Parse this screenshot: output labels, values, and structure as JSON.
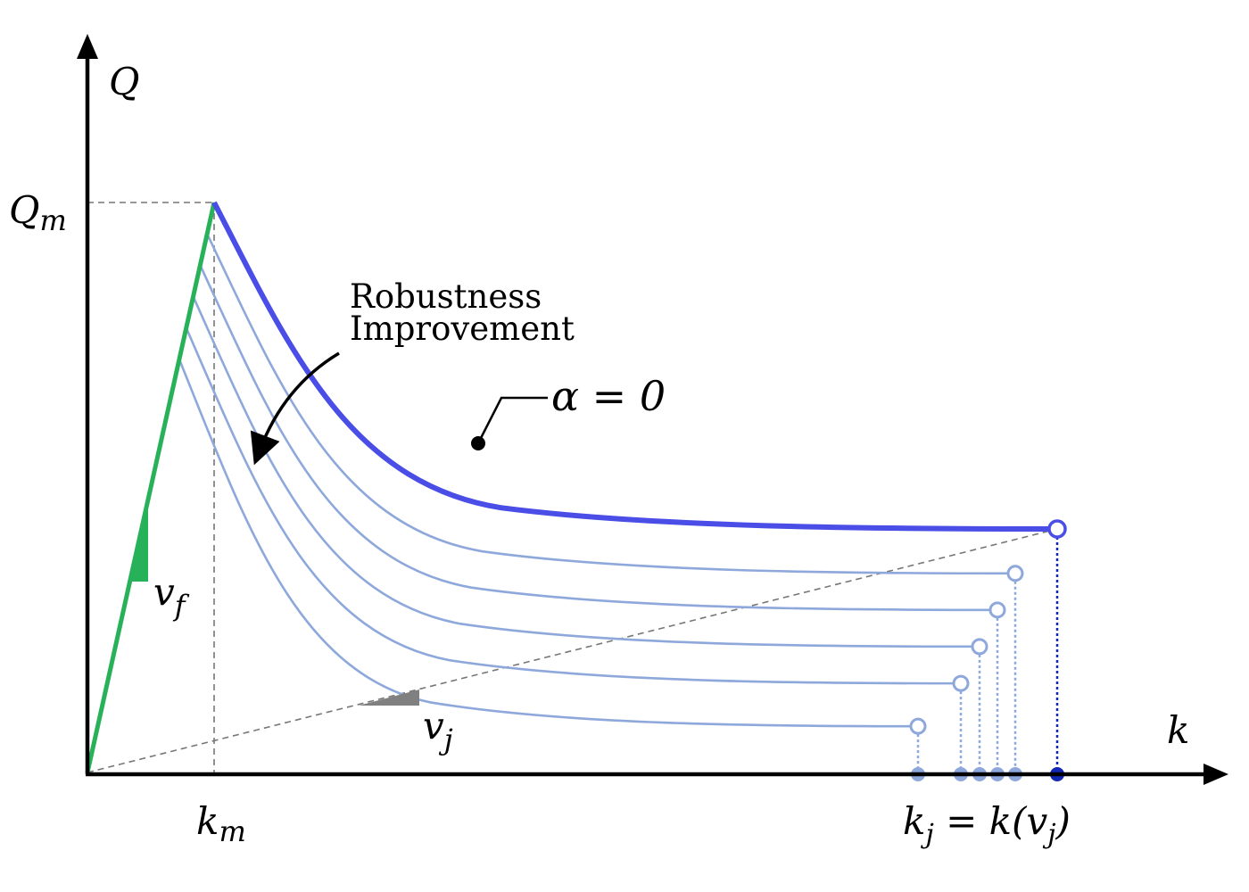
{
  "axes": {
    "y_label": "Q",
    "x_label": "k",
    "q_max": {
      "base": "Q",
      "sub": "m"
    },
    "k_m": {
      "base": "k",
      "sub": "m"
    },
    "k_j": {
      "pre": "k",
      "sub1": "j",
      "mid": " = k(v",
      "sub2": "j",
      "post": ")"
    }
  },
  "annotations": {
    "robustness_line1": "Robustness",
    "robustness_line2": "Improvement",
    "alpha_label": "α = 0",
    "v_f": {
      "base": "v",
      "sub": "f"
    },
    "v_j": {
      "base": "v",
      "sub": "j"
    }
  },
  "colors": {
    "free_flow": "#27b25a",
    "alpha0_curve": "#4a4ee6",
    "curves": "#8ea8dc",
    "endpoint_dark": "#1327b5",
    "guide": "#777777",
    "slope_marker": "#808080"
  },
  "curve_count": 6
}
